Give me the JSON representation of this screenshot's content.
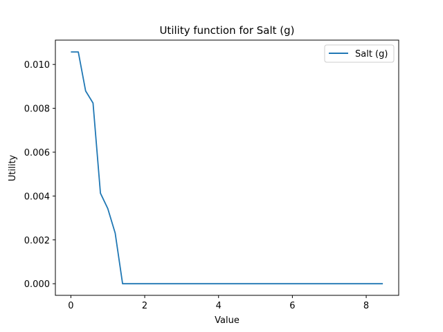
{
  "chart_data": {
    "type": "line",
    "title": "Utility function for Salt (g)",
    "xlabel": "Value",
    "ylabel": "Utility",
    "xlim": [
      -0.42,
      8.88
    ],
    "ylim": [
      -0.00053,
      0.01111
    ],
    "xticks": [
      0,
      2,
      4,
      6,
      8
    ],
    "xtick_labels": [
      "0",
      "2",
      "4",
      "6",
      "8"
    ],
    "yticks": [
      0.0,
      0.002,
      0.004,
      0.006,
      0.008,
      0.01
    ],
    "ytick_labels": [
      "0.000",
      "0.002",
      "0.004",
      "0.006",
      "0.008",
      "0.010"
    ],
    "grid": false,
    "legend": "top-right",
    "series": [
      {
        "name": "Salt (g)",
        "color": "#1f77b4",
        "x": [
          0.0,
          0.2,
          0.4,
          0.6,
          0.8,
          1.0,
          1.2,
          1.4,
          8.45
        ],
        "y": [
          0.01057,
          0.01057,
          0.00879,
          0.00824,
          0.00413,
          0.00343,
          0.00231,
          0.0,
          0.0
        ]
      }
    ]
  }
}
